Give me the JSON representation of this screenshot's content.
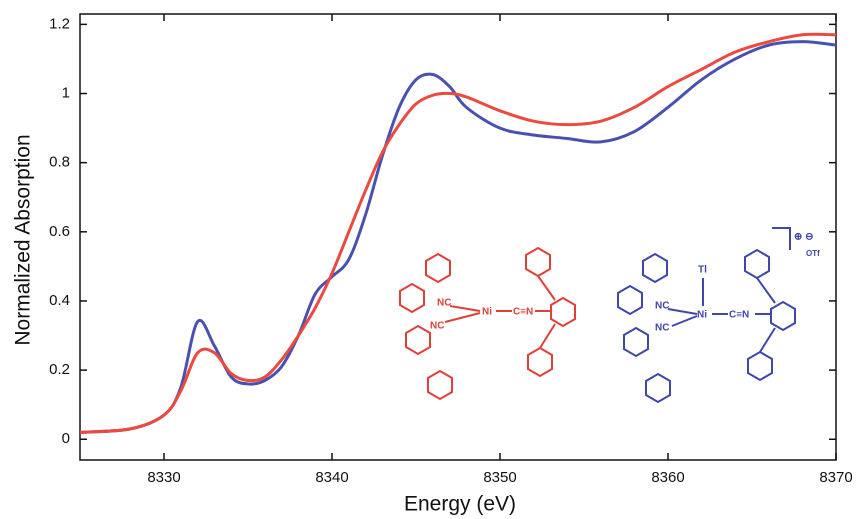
{
  "chart_data": {
    "type": "line",
    "x_label": "Energy (eV)",
    "y_label": "Normalized Absorption",
    "x": [
      8325,
      8328,
      8330,
      8331,
      8332,
      8333,
      8334,
      8335,
      8336,
      8337,
      8338,
      8339,
      8340,
      8341,
      8342,
      8343,
      8344,
      8345,
      8346,
      8347,
      8348,
      8350,
      8352,
      8354,
      8356,
      8358,
      8360,
      8362,
      8364,
      8366,
      8368,
      8370
    ],
    "series": [
      {
        "color": "#4a50b0",
        "values": [
          0.02,
          0.03,
          0.07,
          0.15,
          0.34,
          0.27,
          0.18,
          0.16,
          0.17,
          0.21,
          0.3,
          0.42,
          0.47,
          0.52,
          0.65,
          0.82,
          0.96,
          1.04,
          1.055,
          1.02,
          0.96,
          0.9,
          0.88,
          0.87,
          0.86,
          0.89,
          0.96,
          1.04,
          1.1,
          1.14,
          1.15,
          1.14
        ]
      },
      {
        "color": "#ea4a40",
        "values": [
          0.02,
          0.03,
          0.07,
          0.14,
          0.25,
          0.25,
          0.19,
          0.17,
          0.18,
          0.23,
          0.3,
          0.38,
          0.48,
          0.6,
          0.72,
          0.83,
          0.91,
          0.97,
          0.995,
          1.0,
          0.99,
          0.95,
          0.92,
          0.91,
          0.92,
          0.96,
          1.02,
          1.07,
          1.12,
          1.15,
          1.17,
          1.17
        ]
      }
    ],
    "xlim": [
      8325,
      8370
    ],
    "xticks": [
      8330,
      8340,
      8350,
      8360,
      8370
    ],
    "ylim": [
      -0.06,
      1.23
    ],
    "yticks": [
      0,
      0.2,
      0.4,
      0.6,
      0.8,
      1,
      1.2
    ],
    "annotations": {
      "red_complex": [
        "NC",
        "NC",
        "Ni",
        "C≡N"
      ],
      "blue_complex": [
        "NC",
        "NC",
        "Ni",
        "C≡N",
        "Tl",
        "⊕ ⊖",
        "OTf"
      ]
    }
  }
}
